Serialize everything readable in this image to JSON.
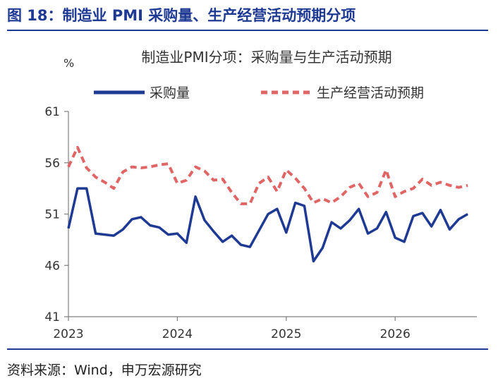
{
  "figure_title": "图 18：制造业 PMI 采购量、生产经营活动预期分项",
  "source": "资料来源：Wind，申万宏源研究",
  "chart_data": {
    "type": "line",
    "title": "制造业PMI分项：采购量与生产活动预期",
    "ylabel": "%",
    "ylim": [
      41,
      61
    ],
    "yticks": [
      41,
      46,
      51,
      56,
      61
    ],
    "xlim": [
      0,
      45
    ],
    "xticks": [
      {
        "label": "2023",
        "x": 0
      },
      {
        "label": "2024",
        "x": 12
      },
      {
        "label": "2025",
        "x": 24
      },
      {
        "label": "2026",
        "x": 36
      }
    ],
    "legend_position": "top",
    "series": [
      {
        "name": "采购量",
        "color": "#1f3a93",
        "style": "solid",
        "values": [
          49.6,
          53.5,
          53.5,
          49.1,
          49.0,
          48.9,
          49.5,
          50.5,
          50.7,
          49.9,
          49.7,
          49.0,
          49.1,
          48.2,
          52.7,
          50.4,
          49.3,
          48.3,
          48.9,
          48.0,
          47.8,
          49.4,
          51.0,
          51.5,
          49.2,
          52.1,
          51.8,
          46.4,
          47.7,
          50.2,
          49.6,
          50.4,
          51.5,
          49.1,
          49.6,
          51.2,
          48.7,
          48.3,
          50.8,
          51.1,
          49.8,
          51.4,
          49.5,
          50.5,
          51.0
        ]
      },
      {
        "name": "生产经营活动预期",
        "color": "#e06666",
        "style": "dashed",
        "values": [
          55.6,
          57.5,
          55.5,
          54.6,
          54.1,
          53.5,
          55.1,
          55.6,
          55.5,
          55.6,
          55.8,
          55.9,
          54.0,
          54.3,
          55.6,
          55.2,
          54.3,
          54.4,
          53.1,
          52.0,
          52.0,
          54.0,
          54.6,
          53.2,
          55.3,
          54.5,
          53.5,
          52.1,
          52.5,
          52.1,
          52.7,
          53.6,
          54.0,
          52.7,
          53.1,
          55.3,
          52.7,
          53.2,
          53.5,
          54.4,
          53.8,
          54.1,
          53.8,
          53.6,
          53.8
        ]
      }
    ]
  }
}
